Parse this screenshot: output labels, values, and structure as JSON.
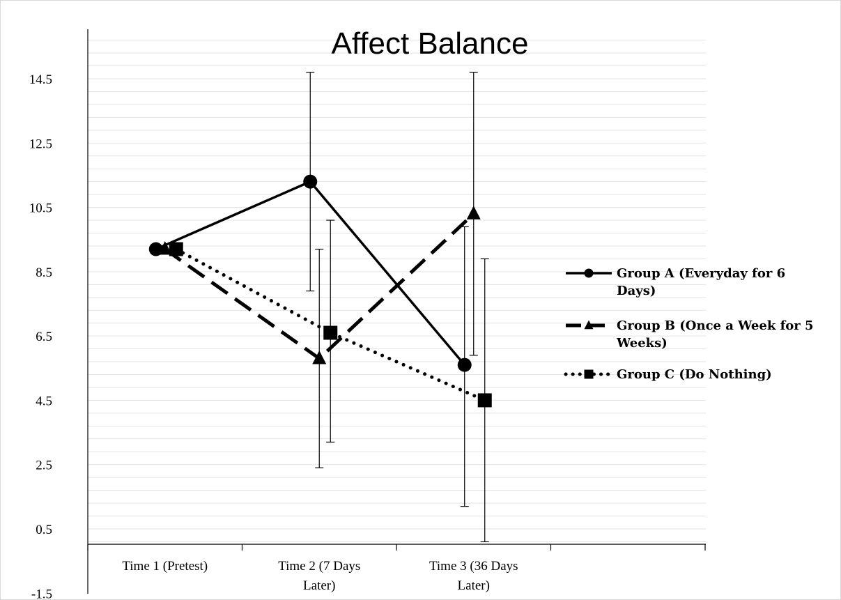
{
  "chart_data": {
    "type": "line",
    "title": "Affect Balance",
    "categories": [
      "Time 1 (Pretest)",
      "Time 2 (7 Days Later)",
      "Time 3 (36 Days Later)"
    ],
    "category_lines": [
      [
        "Time 1 (Pretest)"
      ],
      [
        "Time 2 (7 Days",
        "Later)"
      ],
      [
        "Time 3 (36 Days",
        "Later)"
      ]
    ],
    "yticks": [
      "14.5",
      "12.5",
      "10.5",
      "8.5",
      "6.5",
      "4.5",
      "2.5",
      "0.5",
      "-1.5"
    ],
    "ylim": [
      -1.5,
      16.5
    ],
    "grid": true,
    "legend_position": "right",
    "series": [
      {
        "name": "Group A (Everyday for 6 Days)",
        "name_lines": [
          "Group A (Everyday for 6",
          "Days)"
        ],
        "marker": "circle",
        "dash": "solid",
        "values": [
          9.2,
          11.3,
          5.6
        ],
        "error_low": [
          null,
          7.9,
          1.2
        ],
        "error_high": [
          null,
          14.7,
          9.9
        ]
      },
      {
        "name": "Group B (Once a Week for 5 Weeks)",
        "name_lines": [
          "Group B (Once a Week for 5",
          "Weeks)"
        ],
        "marker": "triangle",
        "dash": "dashed",
        "values": [
          9.2,
          5.8,
          10.3
        ],
        "error_low": [
          null,
          2.4,
          5.9
        ],
        "error_high": [
          null,
          9.2,
          14.7
        ]
      },
      {
        "name": "Group C (Do Nothing)",
        "name_lines": [
          "Group C (Do Nothing)"
        ],
        "marker": "square",
        "dash": "dotted",
        "values": [
          9.2,
          6.6,
          4.5
        ],
        "error_low": [
          null,
          3.2,
          0.1
        ],
        "error_high": [
          null,
          10.1,
          8.9
        ]
      }
    ]
  }
}
